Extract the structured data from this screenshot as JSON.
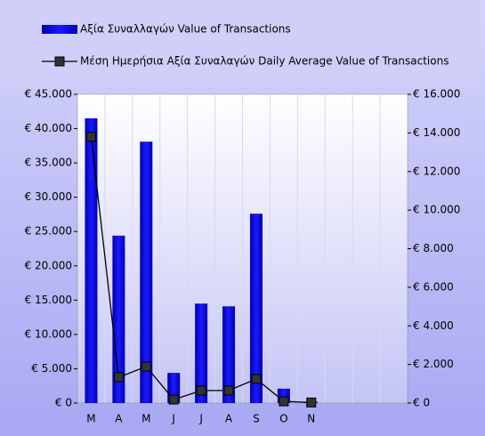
{
  "chart_data": {
    "type": "bar_line",
    "categories": [
      "M",
      "A",
      "M",
      "J",
      "J",
      "A",
      "S",
      "O",
      "N",
      null,
      null,
      null
    ],
    "series": [
      {
        "name": "Αξία Συναλλαγών Value of Transactions",
        "color": "#0000e6",
        "type": "bar",
        "axis": "y",
        "values": [
          41500,
          24400,
          38100,
          4400,
          14500,
          14100,
          27600,
          2100,
          200,
          null,
          null,
          null
        ]
      },
      {
        "name": "Μέση Ημερήσια Αξία Συναλαγών Daily Average Value of Transactions",
        "color": "#000000",
        "type": "line",
        "axis": "y2",
        "values": [
          13800,
          1340,
          1890,
          180,
          650,
          650,
          1250,
          90,
          30,
          null,
          null,
          null
        ]
      }
    ],
    "ylim": [
      0,
      45000
    ],
    "yticks": [
      {
        "value": 0,
        "label": "€ 0"
      },
      {
        "value": 5000,
        "label": "€ 5.000"
      },
      {
        "value": 10000,
        "label": "€ 10.000"
      },
      {
        "value": 15000,
        "label": "€ 15.000"
      },
      {
        "value": 20000,
        "label": "€ 20.000"
      },
      {
        "value": 25000,
        "label": "€ 25.000"
      },
      {
        "value": 30000,
        "label": "€ 30.000"
      },
      {
        "value": 35000,
        "label": "€ 35.000"
      },
      {
        "value": 40000,
        "label": "€ 40.000"
      },
      {
        "value": 45000,
        "label": "€ 45.000"
      }
    ],
    "y2lim": [
      0,
      16000
    ],
    "y2ticks": [
      {
        "value": 0,
        "label": "€ 0"
      },
      {
        "value": 2000,
        "label": "€ 2.000"
      },
      {
        "value": 4000,
        "label": "€ 4.000"
      },
      {
        "value": 6000,
        "label": "€ 6.000"
      },
      {
        "value": 8000,
        "label": "€ 8.000"
      },
      {
        "value": 10000,
        "label": "€ 10.000"
      },
      {
        "value": 12000,
        "label": "€ 12.000"
      },
      {
        "value": 14000,
        "label": "€ 14.000"
      },
      {
        "value": 16000,
        "label": "€ 16.000"
      }
    ],
    "legend": "top"
  }
}
